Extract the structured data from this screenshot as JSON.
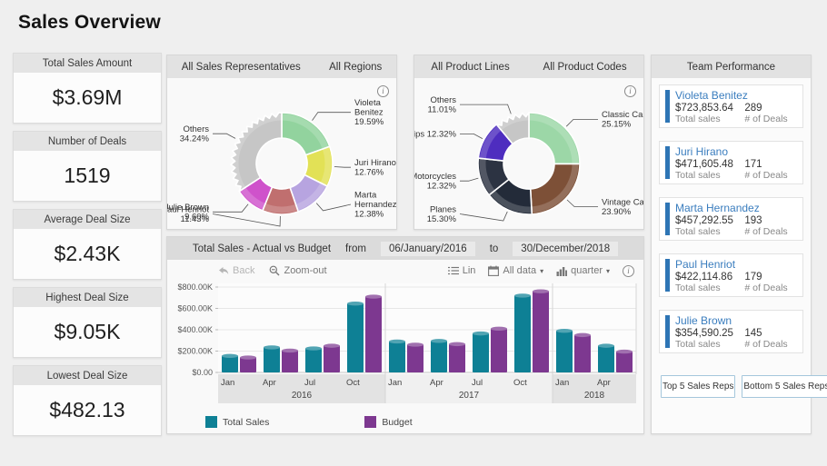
{
  "page": {
    "title": "Sales Overview"
  },
  "kpis": [
    {
      "label": "Total Sales Amount",
      "value": "$3.69M"
    },
    {
      "label": "Number of Deals",
      "value": "1519"
    },
    {
      "label": "Average Deal Size",
      "value": "$2.43K"
    },
    {
      "label": "Highest Deal Size",
      "value": "$9.05K"
    },
    {
      "label": "Lowest Deal Size",
      "value": "$482.13"
    }
  ],
  "rep_panel": {
    "tab1": "All Sales Representatives",
    "tab2": "All Regions"
  },
  "product_panel": {
    "tab1": "All Product Lines",
    "tab2": "All Product Codes"
  },
  "bar_panel": {
    "title": "Total Sales - Actual vs Budget",
    "from_label": "from",
    "from_date": "06/January/2016",
    "to_label": "to",
    "to_date": "30/December/2018",
    "back": "Back",
    "zoom_out": "Zoom-out",
    "lin": "Lin",
    "all_data": "All data",
    "granularity": "quarter"
  },
  "team_panel": {
    "title": "Team Performance",
    "total_sales_label": "Total sales",
    "deals_label": "# of Deals",
    "reps": [
      {
        "name": "Violeta Benitez",
        "total_sales": "$723,853.64",
        "deals": "289"
      },
      {
        "name": "Juri Hirano",
        "total_sales": "$471,605.48",
        "deals": "171"
      },
      {
        "name": "Marta Hernandez",
        "total_sales": "$457,292.55",
        "deals": "193"
      },
      {
        "name": "Paul Henriot",
        "total_sales": "$422,114.86",
        "deals": "179"
      },
      {
        "name": "Julie Brown",
        "total_sales": "$354,590.25",
        "deals": "145"
      }
    ],
    "top_button": "Top 5 Sales Reps",
    "bottom_button": "Bottom 5 Sales Reps"
  },
  "chart_data": [
    {
      "type": "pie",
      "title": "All Sales Representatives",
      "donut": true,
      "slices": [
        {
          "label": "Violeta Benitez",
          "pct": 19.59,
          "pct_text": "19.59%",
          "color": "#92d39e"
        },
        {
          "label": "Juri Hirano",
          "pct": 12.76,
          "pct_text": "12.76%",
          "color": "#e2e156"
        },
        {
          "label": "Marta Hernandez",
          "pct": 12.38,
          "pct_text": "12.38%",
          "color": "#b7a4e0"
        },
        {
          "label": "Paul Henriot",
          "pct": 11.43,
          "pct_text": "11.43%",
          "color": "#c06f6f"
        },
        {
          "label": "Julie Brown",
          "pct": 9.6,
          "pct_text": "9.60%",
          "color": "#cf52cb"
        },
        {
          "label": "Others",
          "pct": 34.24,
          "pct_text": "34.24%",
          "color": "#c6c6c6",
          "serrated": true
        }
      ]
    },
    {
      "type": "pie",
      "title": "All Product Lines",
      "donut": true,
      "slices": [
        {
          "label": "Classic Cars",
          "pct": 25.15,
          "pct_text": "25.15%",
          "color": "#9cd7a7"
        },
        {
          "label": "Vintage Cars",
          "pct": 23.9,
          "pct_text": "23.90%",
          "color": "#7d5037"
        },
        {
          "label": "Planes",
          "pct": 15.3,
          "pct_text": "15.30%",
          "color": "#232b39"
        },
        {
          "label": "Motorcycles",
          "pct": 12.32,
          "pct_text": "12.32%",
          "color": "#2c3342"
        },
        {
          "label": "Ships",
          "pct": 12.32,
          "pct_text": "12.32%",
          "color": "#4e2dbf"
        },
        {
          "label": "Others",
          "pct": 11.01,
          "pct_text": "11.01%",
          "color": "#c6c6c6",
          "serrated": true
        }
      ]
    },
    {
      "type": "bar",
      "title": "Total Sales - Actual vs Budget",
      "x_groups": [
        {
          "year": "2016",
          "quarters": [
            "Jan",
            "Apr",
            "Jul",
            "Oct"
          ]
        },
        {
          "year": "2017",
          "quarters": [
            "Jan",
            "Apr",
            "Jul",
            "Oct"
          ]
        },
        {
          "year": "2018",
          "quarters": [
            "Jan",
            "Apr"
          ]
        }
      ],
      "series": [
        {
          "name": "Total Sales",
          "color": "#0e8095",
          "values": [
            155000,
            235000,
            225000,
            645000,
            290000,
            295000,
            365000,
            720000,
            390000,
            250000
          ]
        },
        {
          "name": "Budget",
          "color": "#7d3890",
          "values": [
            140000,
            205000,
            250000,
            710000,
            260000,
            265000,
            410000,
            760000,
            350000,
            195000
          ]
        }
      ],
      "ylim": [
        0,
        800000
      ],
      "yticks": [
        {
          "v": 0,
          "label": "$0.00"
        },
        {
          "v": 200000,
          "label": "$200.00K"
        },
        {
          "v": 400000,
          "label": "$400.00K"
        },
        {
          "v": 600000,
          "label": "$600.00K"
        },
        {
          "v": 800000,
          "label": "$800.00K"
        }
      ],
      "legend_position": "bottom",
      "grid": true
    }
  ]
}
